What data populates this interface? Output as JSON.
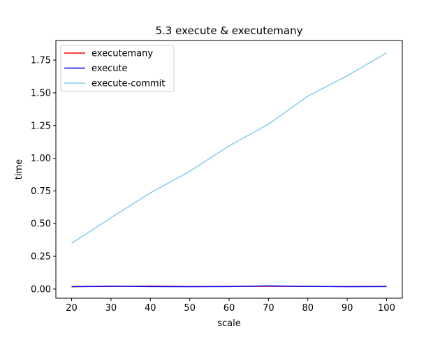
{
  "chart_data": {
    "type": "line",
    "title": "5.3 execute & executemany",
    "xlabel": "scale",
    "ylabel": "time",
    "x": [
      20,
      30,
      40,
      50,
      60,
      70,
      80,
      90,
      100
    ],
    "xticks": [
      "20",
      "30",
      "40",
      "50",
      "60",
      "70",
      "80",
      "90",
      "100"
    ],
    "yticks": [
      "0.00",
      "0.25",
      "0.50",
      "0.75",
      "1.00",
      "1.25",
      "1.50",
      "1.75"
    ],
    "xlim": [
      16,
      104
    ],
    "ylim": [
      -0.07,
      1.9
    ],
    "grid": false,
    "legend_position": "upper-left",
    "series": [
      {
        "name": "executemany",
        "color": "#ff0000",
        "values": [
          0.018,
          0.02,
          0.022,
          0.019,
          0.02,
          0.021,
          0.02,
          0.019,
          0.02
        ]
      },
      {
        "name": "execute",
        "color": "#0000ff",
        "values": [
          0.018,
          0.022,
          0.019,
          0.018,
          0.019,
          0.024,
          0.02,
          0.018,
          0.019
        ]
      },
      {
        "name": "execute-commit",
        "color": "#87ceeb",
        "values": [
          0.35,
          0.545,
          0.735,
          0.9,
          1.095,
          1.26,
          1.475,
          1.63,
          1.805
        ]
      }
    ]
  }
}
